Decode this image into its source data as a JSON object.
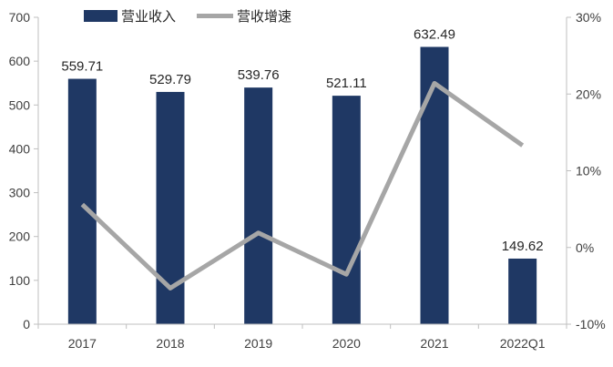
{
  "chart_data": {
    "type": "bar",
    "categories": [
      "2017",
      "2018",
      "2019",
      "2020",
      "2021",
      "2022Q1"
    ],
    "series": [
      {
        "name": "营业收入",
        "type": "bar",
        "axis": "left",
        "values": [
          559.71,
          529.79,
          539.76,
          521.11,
          632.49,
          149.62
        ],
        "labels": [
          "559.71",
          "529.79",
          "539.76",
          "521.11",
          "632.49",
          "149.62"
        ]
      },
      {
        "name": "营收增速",
        "type": "line",
        "axis": "right",
        "values": [
          5.6,
          -5.3,
          1.9,
          -3.5,
          21.4,
          13.3
        ]
      }
    ],
    "y_left": {
      "min": 0,
      "max": 700,
      "step": 100
    },
    "y_right": {
      "min": -10,
      "max": 30,
      "step": 10,
      "unit": "%"
    },
    "legend_position": "top",
    "grid": false,
    "colors": {
      "bar": "#1f3864",
      "line": "#a6a6a6",
      "axis": "#bfbfbf",
      "text": "#404040"
    }
  }
}
